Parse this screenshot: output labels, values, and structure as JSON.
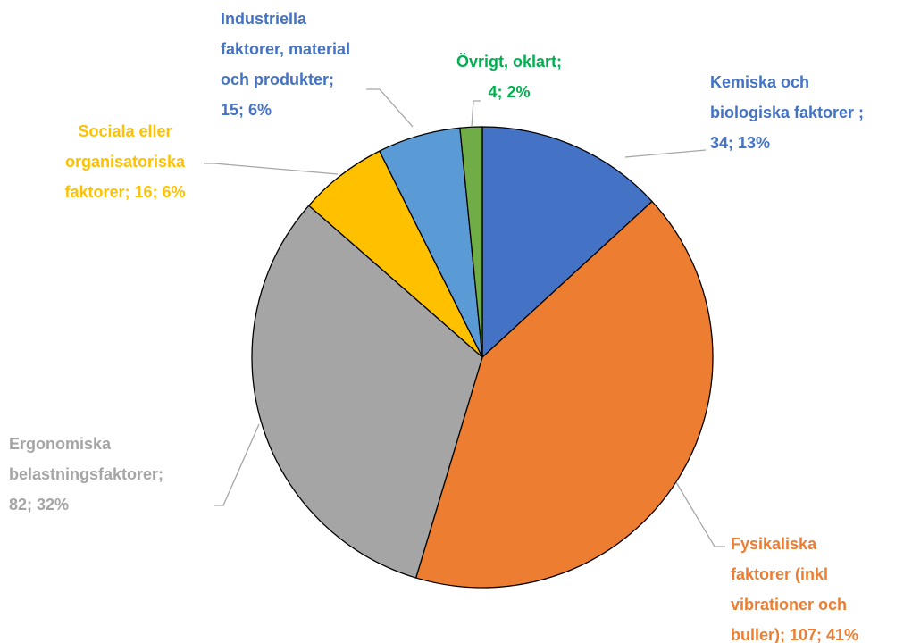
{
  "chart_data": {
    "type": "pie",
    "values": [
      34,
      107,
      82,
      16,
      15,
      4
    ],
    "value_labels": [
      [
        "Kemiska och",
        "biologiska faktorer ;",
        "34; 13%"
      ],
      [
        "Fysikaliska",
        "faktorer (inkl",
        "vibrationer och",
        "buller); 107; 41%"
      ],
      [
        "Ergonomiska",
        "belastningsfaktorer;",
        "82; 32%"
      ],
      [
        "Sociala eller",
        "organisatoriska",
        "faktorer; 16; 6%"
      ],
      [
        "Industriella",
        "faktorer, material",
        "och produkter;",
        "15; 6%"
      ],
      [
        "Övrigt, oklart;",
        "4; 2%"
      ]
    ],
    "colors": [
      "#4472c4",
      "#ed7d31",
      "#a5a5a5",
      "#ffc000",
      "#5b9bd5",
      "#70ad47"
    ],
    "label_colors": [
      "#4472c4",
      "#ed7d31",
      "#a5a5a5",
      "#ffc000",
      "#4472c4",
      "#00b050"
    ]
  }
}
